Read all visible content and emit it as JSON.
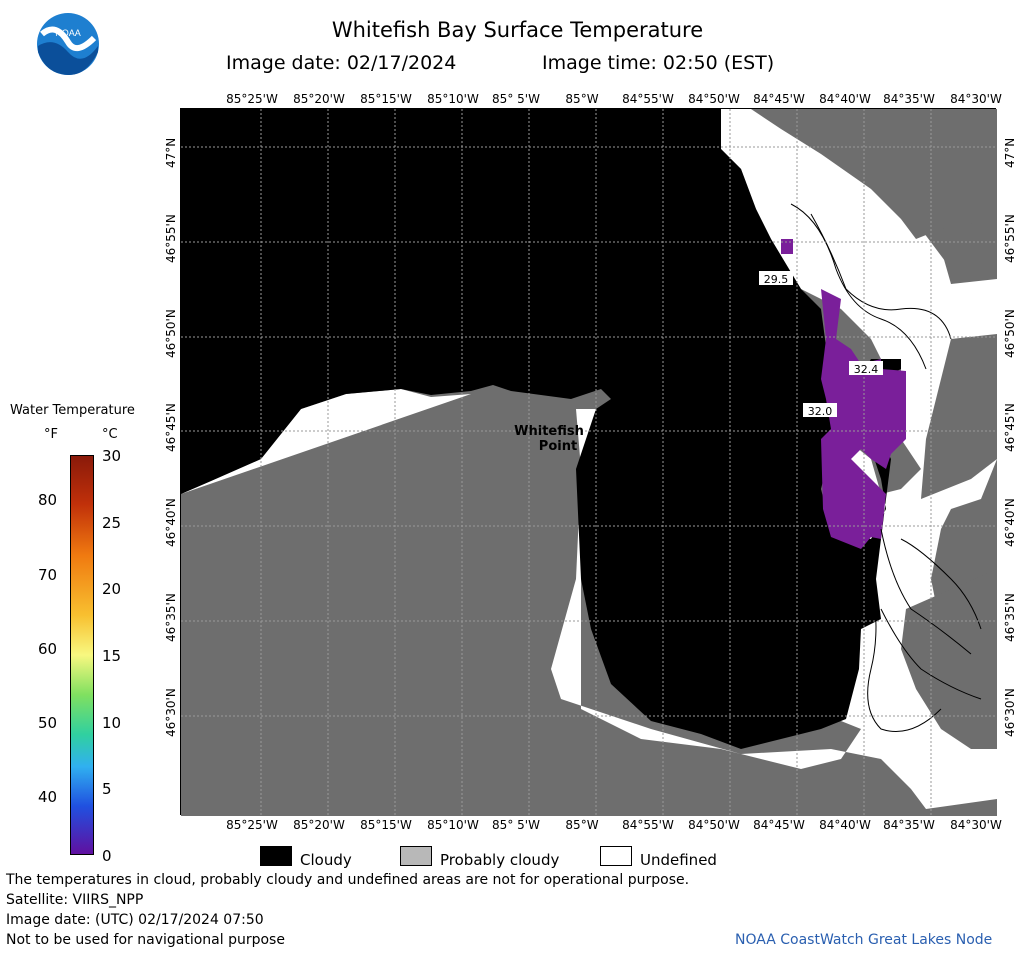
{
  "header": {
    "title": "Whitefish Bay Surface Temperature",
    "image_date": "Image date: 02/17/2024",
    "image_time": "Image time: 02:50 (EST)",
    "logo_text": "NOAA"
  },
  "map": {
    "lon_labels": [
      "85°25'W",
      "85°20'W",
      "85°15'W",
      "85°10'W",
      "85° 5'W",
      "85°W",
      "84°55'W",
      "84°50'W",
      "84°45'W",
      "84°40'W",
      "84°35'W",
      "84°30'W"
    ],
    "lat_labels": [
      "47°N",
      "46°55'N",
      "46°50'N",
      "46°45'N",
      "46°40'N",
      "46°35'N",
      "46°30'N"
    ],
    "place_label_line1": "Whitefish",
    "place_label_line2": "Point",
    "contour_labels": [
      "29.5",
      "32.4",
      "32.0"
    ],
    "colors": {
      "land": "#6e6e6e",
      "cloud": "#000000",
      "undefined": "#ffffff",
      "ice_water": "#7a1f9a",
      "grid": "#9a9a9a"
    }
  },
  "colorbar": {
    "title": "Water Temperature",
    "unit_f": "°F",
    "unit_c": "°C",
    "f_ticks": [
      "80",
      "70",
      "60",
      "50",
      "40"
    ],
    "c_ticks": [
      "30",
      "25",
      "20",
      "15",
      "10",
      "5",
      "0"
    ],
    "range_c": [
      0,
      30
    ]
  },
  "legend": {
    "cloudy": "Cloudy",
    "probably_cloudy": "Probably cloudy",
    "undefined": "Undefined"
  },
  "footer": {
    "line1": "The temperatures in cloud, probably cloudy and undefined areas are not for operational purpose.",
    "line2": "Satellite: VIIRS_NPP",
    "line3": "Image date: (UTC) 02/17/2024   07:50",
    "line4": "Not to be used for navigational purpose",
    "credit": "NOAA CoastWatch Great Lakes Node"
  }
}
